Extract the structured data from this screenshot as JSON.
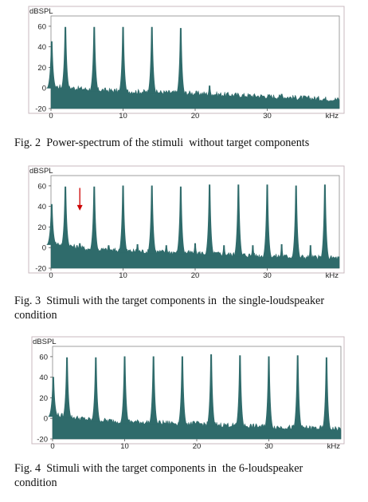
{
  "figures": [
    {
      "caption": "Fig. 2  Power-spectrum of the stimuli  without target components"
    },
    {
      "caption": "Fig. 3  Stimuli with the target components in  the single-loudspeaker\ncondition"
    },
    {
      "caption": "Fig. 4  Stimuli with the target components in  the 6-loudspeaker\ncondition"
    }
  ],
  "colors": {
    "fill": "#2f6b6b",
    "frame": "#c9b9bf",
    "plot_bg": "#ffffff",
    "arrow": "#cc0000"
  },
  "chart_data": [
    {
      "type": "area",
      "title": "",
      "ylabel": "dBSPL",
      "xlabel": "kHz",
      "xlim": [
        0,
        40
      ],
      "ylim": [
        -20,
        70
      ],
      "xticks": [
        0,
        10,
        20,
        30
      ],
      "yticks": [
        -20,
        0,
        20,
        40,
        60
      ],
      "noise_floor": [
        [
          0,
          2
        ],
        [
          5,
          -1
        ],
        [
          10,
          -3
        ],
        [
          20,
          -5
        ],
        [
          30,
          -8
        ],
        [
          40,
          -11
        ]
      ],
      "peaks": [
        {
          "x": 0.1,
          "y": 45
        },
        {
          "x": 2,
          "y": 59
        },
        {
          "x": 6,
          "y": 59
        },
        {
          "x": 10,
          "y": 59
        },
        {
          "x": 14,
          "y": 59
        },
        {
          "x": 18,
          "y": 58
        },
        {
          "x": 22,
          "y": 2
        },
        {
          "x": 32,
          "y": -6
        }
      ],
      "annotations": []
    },
    {
      "type": "area",
      "title": "",
      "ylabel": "dBSPL",
      "xlabel": "kHz",
      "xlim": [
        0,
        40
      ],
      "ylim": [
        -20,
        70
      ],
      "xticks": [
        0,
        10,
        20,
        30
      ],
      "yticks": [
        -20,
        0,
        20,
        40,
        60
      ],
      "noise_floor": [
        [
          0,
          5
        ],
        [
          5,
          -1
        ],
        [
          10,
          -3
        ],
        [
          20,
          -5
        ],
        [
          30,
          -8
        ],
        [
          40,
          -10
        ]
      ],
      "peaks": [
        {
          "x": 0.1,
          "y": 42
        },
        {
          "x": 2,
          "y": 59
        },
        {
          "x": 4,
          "y": 4
        },
        {
          "x": 6,
          "y": 59
        },
        {
          "x": 8,
          "y": 2
        },
        {
          "x": 10,
          "y": 60
        },
        {
          "x": 12,
          "y": 3
        },
        {
          "x": 14,
          "y": 60
        },
        {
          "x": 16,
          "y": 2
        },
        {
          "x": 18,
          "y": 59
        },
        {
          "x": 20,
          "y": 4
        },
        {
          "x": 22,
          "y": 61
        },
        {
          "x": 24,
          "y": 2
        },
        {
          "x": 26,
          "y": 61
        },
        {
          "x": 28,
          "y": 2
        },
        {
          "x": 30,
          "y": 61
        },
        {
          "x": 32,
          "y": 3
        },
        {
          "x": 34,
          "y": 60
        },
        {
          "x": 36,
          "y": 2
        },
        {
          "x": 38,
          "y": 61
        }
      ],
      "annotations": [
        {
          "kind": "arrow",
          "x": 4,
          "y_from": 58,
          "y_to": 36
        }
      ]
    },
    {
      "type": "area",
      "title": "",
      "ylabel": "dBSPL",
      "xlabel": "kHz",
      "xlim": [
        0,
        40
      ],
      "ylim": [
        -20,
        70
      ],
      "xticks": [
        0,
        10,
        20,
        30
      ],
      "yticks": [
        -20,
        0,
        20,
        40,
        60
      ],
      "noise_floor": [
        [
          0,
          4
        ],
        [
          5,
          -1
        ],
        [
          10,
          -3
        ],
        [
          20,
          -5
        ],
        [
          30,
          -8
        ],
        [
          40,
          -10
        ]
      ],
      "peaks": [
        {
          "x": 0.1,
          "y": 40
        },
        {
          "x": 2,
          "y": 59
        },
        {
          "x": 6,
          "y": 59
        },
        {
          "x": 10,
          "y": 60
        },
        {
          "x": 14,
          "y": 60
        },
        {
          "x": 18,
          "y": 60
        },
        {
          "x": 22,
          "y": 62
        },
        {
          "x": 26,
          "y": 61
        },
        {
          "x": 30,
          "y": 60
        },
        {
          "x": 34,
          "y": 61
        },
        {
          "x": 38,
          "y": 59
        }
      ],
      "annotations": []
    }
  ]
}
